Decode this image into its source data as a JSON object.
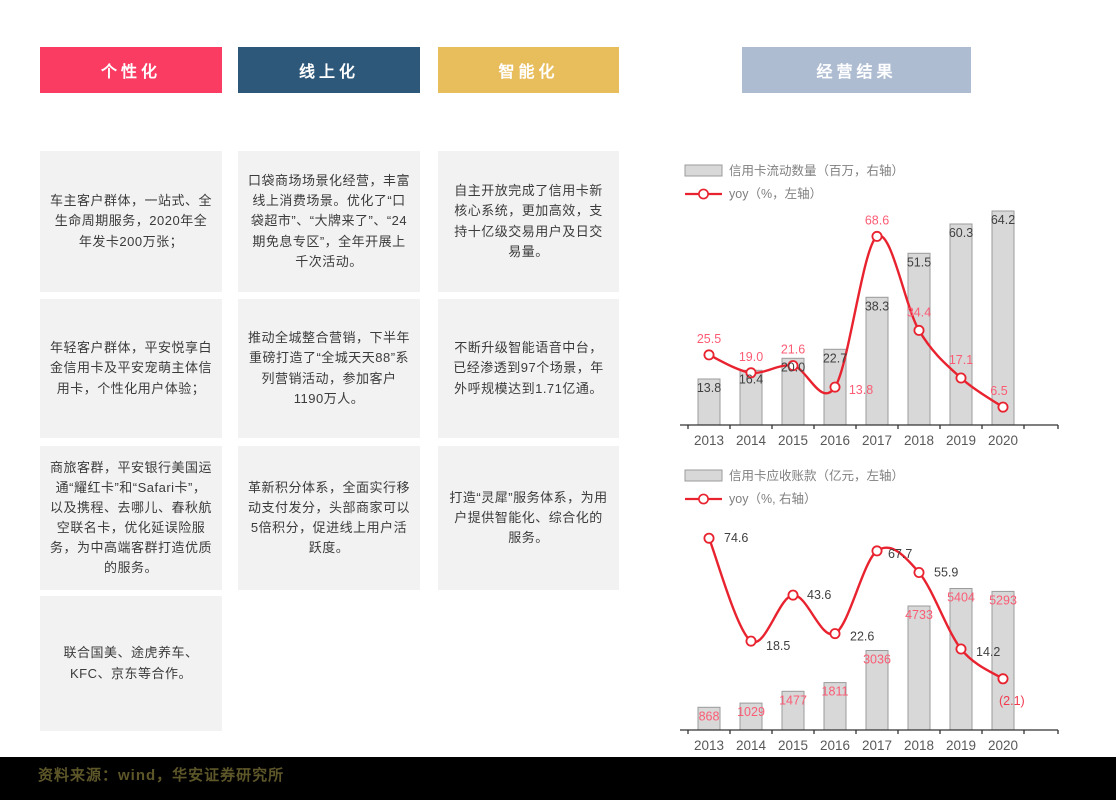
{
  "headers": [
    {
      "label": "个性化",
      "color": "#fa3b62"
    },
    {
      "label": "线上化",
      "color": "#2e587a"
    },
    {
      "label": "智能化",
      "color": "#e8bd5b"
    },
    {
      "label": "经营结果",
      "color": "#aebcd2"
    }
  ],
  "columns": [
    {
      "name": "个性化",
      "boxes": [
        "车主客户群体，一站式、全生命周期服务，2020年全年发卡200万张；",
        "年轻客户群体，平安悦享白金信用卡及平安宠萌主体信用卡，个性化用户体验；",
        "商旅客群，平安银行美国运通“耀红卡”和“Safari卡”，以及携程、去哪儿、春秋航空联名卡，优化延误险服务，为中高端客群打造优质的服务。",
        "联合国美、途虎养车、KFC、京东等合作。"
      ]
    },
    {
      "name": "线上化",
      "boxes": [
        "口袋商场场景化经营，丰富线上消费场景。优化了“口袋超市”、“大牌来了”、“24期免息专区”，全年开展上千次活动。",
        "推动全城整合营销，下半年重磅打造了“全城天天88”系列营销活动，参加客户1190万人。",
        "革新积分体系，全面实行移动支付发分，头部商家可以5倍积分，促进线上用户活跃度。"
      ]
    },
    {
      "name": "智能化",
      "boxes": [
        "自主开放完成了信用卡新核心系统，更加高效，支持十亿级交易用户及日交易量。",
        "不断升级智能语音中台，已经渗透到97个场景，年外呼规模达到1.71亿通。",
        "打造“灵犀”服务体系，为用户提供智能化、综合化的服务。"
      ]
    }
  ],
  "chart_data": [
    {
      "type": "bar+line",
      "title": "",
      "categories": [
        "2013",
        "2014",
        "2015",
        "2016",
        "2017",
        "2018",
        "2019",
        "2020"
      ],
      "grid": false,
      "legend_position": "top-left",
      "series": [
        {
          "name": "信用卡流动数量（百万，右轴）",
          "type": "bar",
          "axis": "right",
          "values": [
            13.8,
            16.4,
            20.0,
            22.7,
            38.3,
            51.5,
            60.3,
            64.2
          ],
          "labels": [
            "13.8",
            "16.4",
            "20.0",
            "22.7",
            "38.3",
            "51.5",
            "60.3",
            "64.2"
          ],
          "ylim": [
            0,
            66
          ],
          "label_color": "#404040"
        },
        {
          "name": "yoy（%，左轴）",
          "type": "line",
          "axis": "left",
          "values": [
            25.5,
            19.0,
            21.6,
            13.8,
            68.6,
            34.4,
            17.1,
            6.5
          ],
          "labels": [
            "25.5",
            "19.0",
            "21.6",
            "13.8",
            "68.6",
            "34.4",
            "17.1",
            "6.5"
          ],
          "ylim": [
            0,
            80
          ],
          "label_color": "#fb5c74",
          "anchor": "middle",
          "label_offsets": [
            [
              0,
              -12
            ],
            [
              0,
              -12
            ],
            [
              0,
              -12
            ],
            [
              26,
              7
            ],
            [
              0,
              -12
            ],
            [
              0,
              -14
            ],
            [
              0,
              -14
            ],
            [
              -4,
              -12
            ]
          ]
        }
      ],
      "colors": {
        "bar_fill": "#d8d8d8",
        "bar_stroke": "#9b9b9b",
        "line": "#e8232f",
        "axis": "#333333",
        "tick_label": "#595959",
        "legend_text": "#7f7f7f"
      }
    },
    {
      "type": "bar+line",
      "title": "",
      "categories": [
        "2013",
        "2014",
        "2015",
        "2016",
        "2017",
        "2018",
        "2019",
        "2020"
      ],
      "grid": false,
      "legend_position": "top-left",
      "series": [
        {
          "name": "信用卡应收账款（亿元，左轴）",
          "type": "bar",
          "axis": "left",
          "values": [
            868,
            1029,
            1477,
            1811,
            3036,
            4733,
            5404,
            5293
          ],
          "labels": [
            "868",
            "1029",
            "1477",
            "1811",
            "3036",
            "4733",
            "5404",
            "5293"
          ],
          "ylim": [
            0,
            8400
          ],
          "label_color": "#fb5c74"
        },
        {
          "name": "yoy（%, 右轴）",
          "type": "line",
          "axis": "right",
          "values": [
            74.6,
            18.5,
            43.6,
            22.6,
            67.7,
            55.9,
            14.2,
            -2.1
          ],
          "labels": [
            "74.6",
            "18.5",
            "43.6",
            "22.6",
            "67.7",
            "55.9",
            "14.2",
            "(2.1)"
          ],
          "ylim": [
            -30,
            90
          ],
          "label_color": "#404040",
          "anchor": "start",
          "label_offsets": [
            [
              15,
              4
            ],
            [
              15,
              9
            ],
            [
              14,
              4
            ],
            [
              15,
              7
            ],
            [
              11,
              7
            ],
            [
              15,
              4
            ],
            [
              15,
              7
            ],
            [
              -4,
              26
            ]
          ],
          "label_colors": [
            null,
            null,
            null,
            null,
            null,
            null,
            null,
            "#f2394e"
          ]
        }
      ],
      "colors": {
        "bar_fill": "#d8d8d8",
        "bar_stroke": "#9b9b9b",
        "line": "#e8232f",
        "axis": "#333333",
        "tick_label": "#595959",
        "legend_text": "#7f7f7f"
      }
    }
  ],
  "footer": {
    "source": "资料来源：wind，华安证券研究所"
  }
}
